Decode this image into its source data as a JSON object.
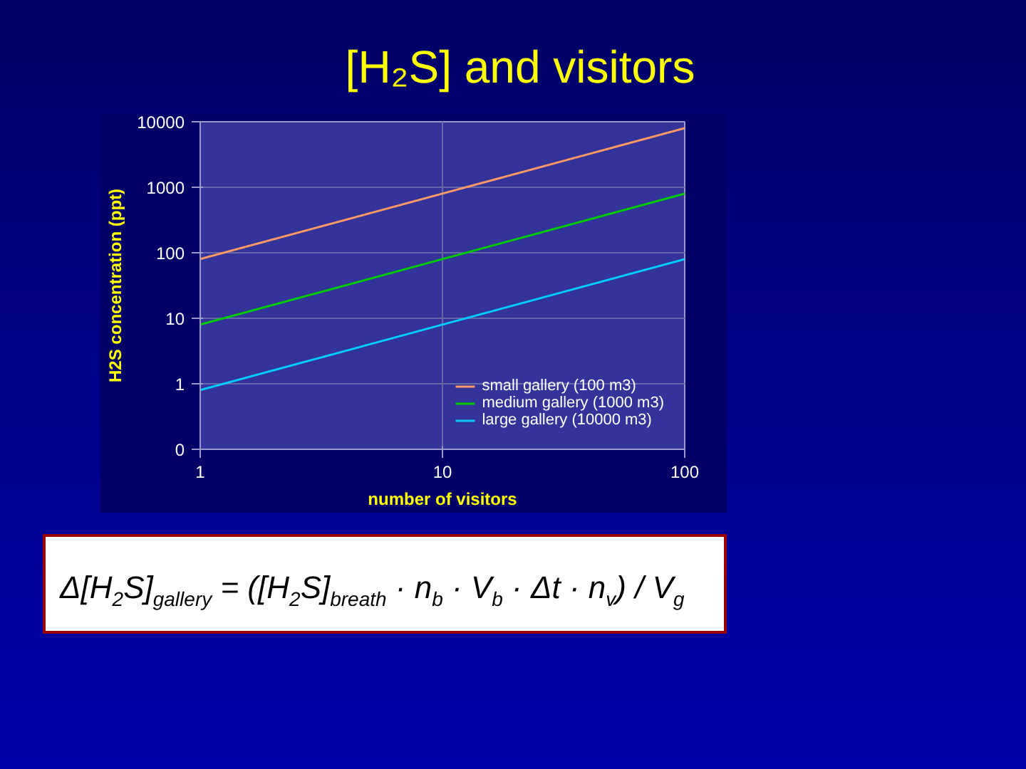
{
  "chart_data": {
    "type": "line",
    "title": "[H₂S] and visitors",
    "xlabel": "number of visitors",
    "ylabel": "H2S concentration (ppt)",
    "x": [
      1,
      10,
      100
    ],
    "series": [
      {
        "name": "small gallery (100 m3)",
        "color": "#ff9966",
        "values": [
          80,
          800,
          8000
        ]
      },
      {
        "name": "medium gallery (1000 m3)",
        "color": "#00cc00",
        "values": [
          8,
          80,
          800
        ]
      },
      {
        "name": "large gallery (10000 m3)",
        "color": "#00ccff",
        "values": [
          0.8,
          8,
          80
        ]
      }
    ],
    "log": "xy",
    "xlim": [
      1,
      100
    ],
    "xticks": [
      1,
      10,
      100
    ],
    "ylim": [
      0.1,
      10000
    ],
    "yticks": [
      {
        "value": 0.1,
        "label": "0"
      },
      1,
      10,
      100,
      1000,
      10000
    ],
    "grid": true,
    "legend": "bottom right",
    "line_style": "solid",
    "marker": "none",
    "annotations": [
      "Δ[H$_{2}$S]$_{gallery}$ = ([H$_{2}$S]$_{breath}$ · n$_{b}$ · V$_{b}$ · Δt · n$_{v}$) / V$_{g}$"
    ]
  }
}
